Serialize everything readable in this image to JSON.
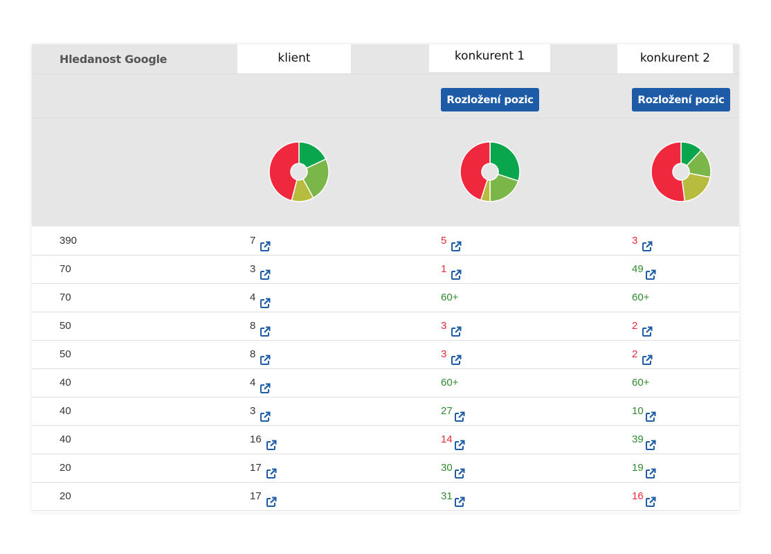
{
  "header": {
    "label": "Hledanost Google",
    "columns": [
      "klient",
      "konkurent 1",
      "konkurent 2"
    ],
    "button_label": "Rozložení pozic"
  },
  "colors": {
    "red": "#e8283a",
    "green": "#2f8a2f",
    "button": "#1d5ba6",
    "segment_dark_green": "#0aa64e",
    "segment_light_green": "#7ab648",
    "segment_olive": "#b7bc3f",
    "segment_red": "#f0283d"
  },
  "donuts": [
    {
      "column": "klient",
      "segments": [
        {
          "color": "segment_dark_green",
          "fraction": 0.18
        },
        {
          "color": "segment_light_green",
          "fraction": 0.24
        },
        {
          "color": "segment_olive",
          "fraction": 0.12
        },
        {
          "color": "segment_red",
          "fraction": 0.46
        }
      ]
    },
    {
      "column": "konkurent 1",
      "segments": [
        {
          "color": "segment_dark_green",
          "fraction": 0.3
        },
        {
          "color": "segment_light_green",
          "fraction": 0.2
        },
        {
          "color": "segment_olive",
          "fraction": 0.05
        },
        {
          "color": "segment_red",
          "fraction": 0.45
        }
      ]
    },
    {
      "column": "konkurent 2",
      "segments": [
        {
          "color": "segment_dark_green",
          "fraction": 0.12
        },
        {
          "color": "segment_light_green",
          "fraction": 0.16
        },
        {
          "color": "segment_olive",
          "fraction": 0.2
        },
        {
          "color": "segment_red",
          "fraction": 0.52
        }
      ]
    }
  ],
  "rows": [
    {
      "volume": "390",
      "klient": "7",
      "k1": {
        "value": "5",
        "status": "red",
        "link": true
      },
      "k2": {
        "value": "3",
        "status": "red",
        "link": true
      }
    },
    {
      "volume": "70",
      "klient": "3",
      "k1": {
        "value": "1",
        "status": "red",
        "link": true
      },
      "k2": {
        "value": "49",
        "status": "green",
        "link": true
      }
    },
    {
      "volume": "70",
      "klient": "4",
      "k1": {
        "value": "60+",
        "status": "green",
        "link": false
      },
      "k2": {
        "value": "60+",
        "status": "green",
        "link": false
      }
    },
    {
      "volume": "50",
      "klient": "8",
      "k1": {
        "value": "3",
        "status": "red",
        "link": true
      },
      "k2": {
        "value": "2",
        "status": "red",
        "link": true
      }
    },
    {
      "volume": "50",
      "klient": "8",
      "k1": {
        "value": "3",
        "status": "red",
        "link": true
      },
      "k2": {
        "value": "2",
        "status": "red",
        "link": true
      }
    },
    {
      "volume": "40",
      "klient": "4",
      "k1": {
        "value": "60+",
        "status": "green",
        "link": false
      },
      "k2": {
        "value": "60+",
        "status": "green",
        "link": false
      }
    },
    {
      "volume": "40",
      "klient": "3",
      "k1": {
        "value": "27",
        "status": "green",
        "link": true
      },
      "k2": {
        "value": "10",
        "status": "green",
        "link": true
      }
    },
    {
      "volume": "40",
      "klient": "16",
      "k1": {
        "value": "14",
        "status": "red",
        "link": true
      },
      "k2": {
        "value": "39",
        "status": "green",
        "link": true
      }
    },
    {
      "volume": "20",
      "klient": "17",
      "k1": {
        "value": "30",
        "status": "green",
        "link": true
      },
      "k2": {
        "value": "19",
        "status": "green",
        "link": true
      }
    },
    {
      "volume": "20",
      "klient": "17",
      "k1": {
        "value": "31",
        "status": "green",
        "link": true
      },
      "k2": {
        "value": "16",
        "status": "red",
        "link": true
      }
    }
  ]
}
